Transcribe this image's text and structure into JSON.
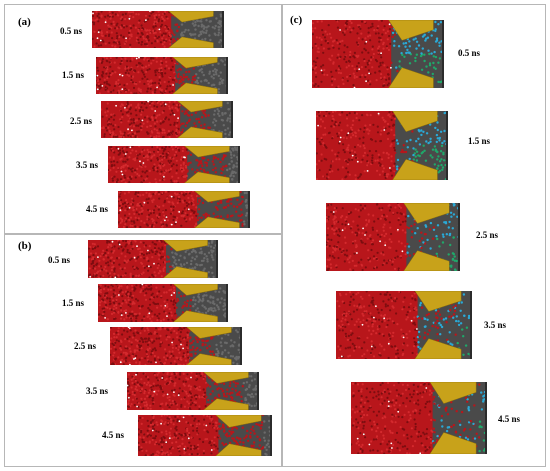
{
  "panels": {
    "a": {
      "label": "(a)",
      "times": [
        "0.5 ns",
        "1.5 ns",
        "2.5 ns",
        "3.5 ns",
        "4.5 ns"
      ]
    },
    "b": {
      "label": "(b)",
      "times": [
        "0.5 ns",
        "1.5 ns",
        "2.5 ns",
        "3.5 ns",
        "4.5 ns"
      ]
    },
    "c": {
      "label": "(c)",
      "times": [
        "0.5 ns",
        "1.5 ns",
        "2.5 ns",
        "3.5 ns",
        "4.5 ns"
      ]
    }
  },
  "colors": {
    "fluid_red": "#b8161b",
    "fluid_red_dark": "#7d0d10",
    "wall_gold": "#c8a21a",
    "wall_gold_dark": "#8c6f0a",
    "reservoir_gray": "#4a4a4a",
    "species_cyan": "#2aa9d6",
    "species_green": "#1fa86a"
  },
  "panel_a_fill": [
    0.18,
    0.38,
    0.58,
    0.75,
    0.88
  ],
  "panel_b_fill": [
    0.12,
    0.3,
    0.5,
    0.7,
    0.85
  ],
  "panel_c_fill": [
    0.15,
    0.35,
    0.55,
    0.72,
    0.86
  ]
}
